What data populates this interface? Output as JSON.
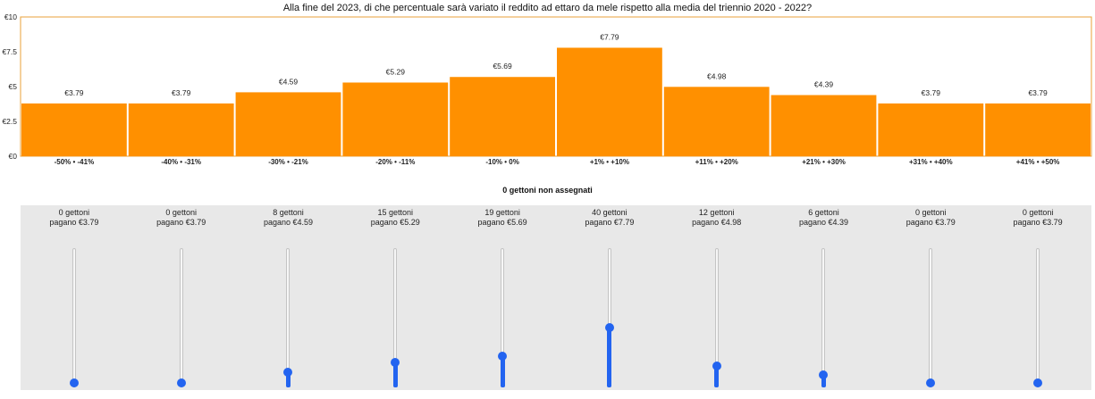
{
  "colors": {
    "bar": "#ff9000",
    "frame": "#e8a23a",
    "slider_accent": "#2364f0",
    "panel_bg": "#e8e8e8"
  },
  "chart_data": {
    "type": "bar",
    "title": "Alla fine del 2023, di che percentuale sarà variato il reddito ad ettaro da mele rispetto alla media del triennio 2020 - 2022?",
    "categories": [
      "-50% • -41%",
      "-40% • -31%",
      "-30% • -21%",
      "-20% • -11%",
      "-10% • 0%",
      "+1% • +10%",
      "+11% • +20%",
      "+21% • +30%",
      "+31% • +40%",
      "+41% • +50%"
    ],
    "values": [
      3.79,
      3.79,
      4.59,
      5.29,
      5.69,
      7.79,
      4.98,
      4.39,
      3.79,
      3.79
    ],
    "value_labels": [
      "€3.79",
      "€3.79",
      "€4.59",
      "€5.29",
      "€5.69",
      "€7.79",
      "€4.98",
      "€4.39",
      "€3.79",
      "€3.79"
    ],
    "yticks": [
      0,
      2.5,
      5,
      7.5,
      10
    ],
    "ytick_labels": [
      "€0",
      "€2.5",
      "€5",
      "€7.5",
      "€10"
    ],
    "ylim": [
      0,
      10
    ],
    "xlabel": "",
    "ylabel": "",
    "grid": false,
    "legend": "none"
  },
  "unassigned_label": "0 gettoni non assegnati",
  "sliders": [
    {
      "tokens_label": "0 gettoni",
      "pays_label": "pagano €3.79",
      "tokens": 0
    },
    {
      "tokens_label": "0 gettoni",
      "pays_label": "pagano €3.79",
      "tokens": 0
    },
    {
      "tokens_label": "8 gettoni",
      "pays_label": "pagano €4.59",
      "tokens": 8
    },
    {
      "tokens_label": "15 gettoni",
      "pays_label": "pagano €5.29",
      "tokens": 15
    },
    {
      "tokens_label": "19 gettoni",
      "pays_label": "pagano €5.69",
      "tokens": 19
    },
    {
      "tokens_label": "40 gettoni",
      "pays_label": "pagano €7.79",
      "tokens": 40
    },
    {
      "tokens_label": "12 gettoni",
      "pays_label": "pagano €4.98",
      "tokens": 12
    },
    {
      "tokens_label": "6 gettoni",
      "pays_label": "pagano €4.39",
      "tokens": 6
    },
    {
      "tokens_label": "0 gettoni",
      "pays_label": "pagano €3.79",
      "tokens": 0
    },
    {
      "tokens_label": "0 gettoni",
      "pays_label": "pagano €3.79",
      "tokens": 0
    }
  ]
}
